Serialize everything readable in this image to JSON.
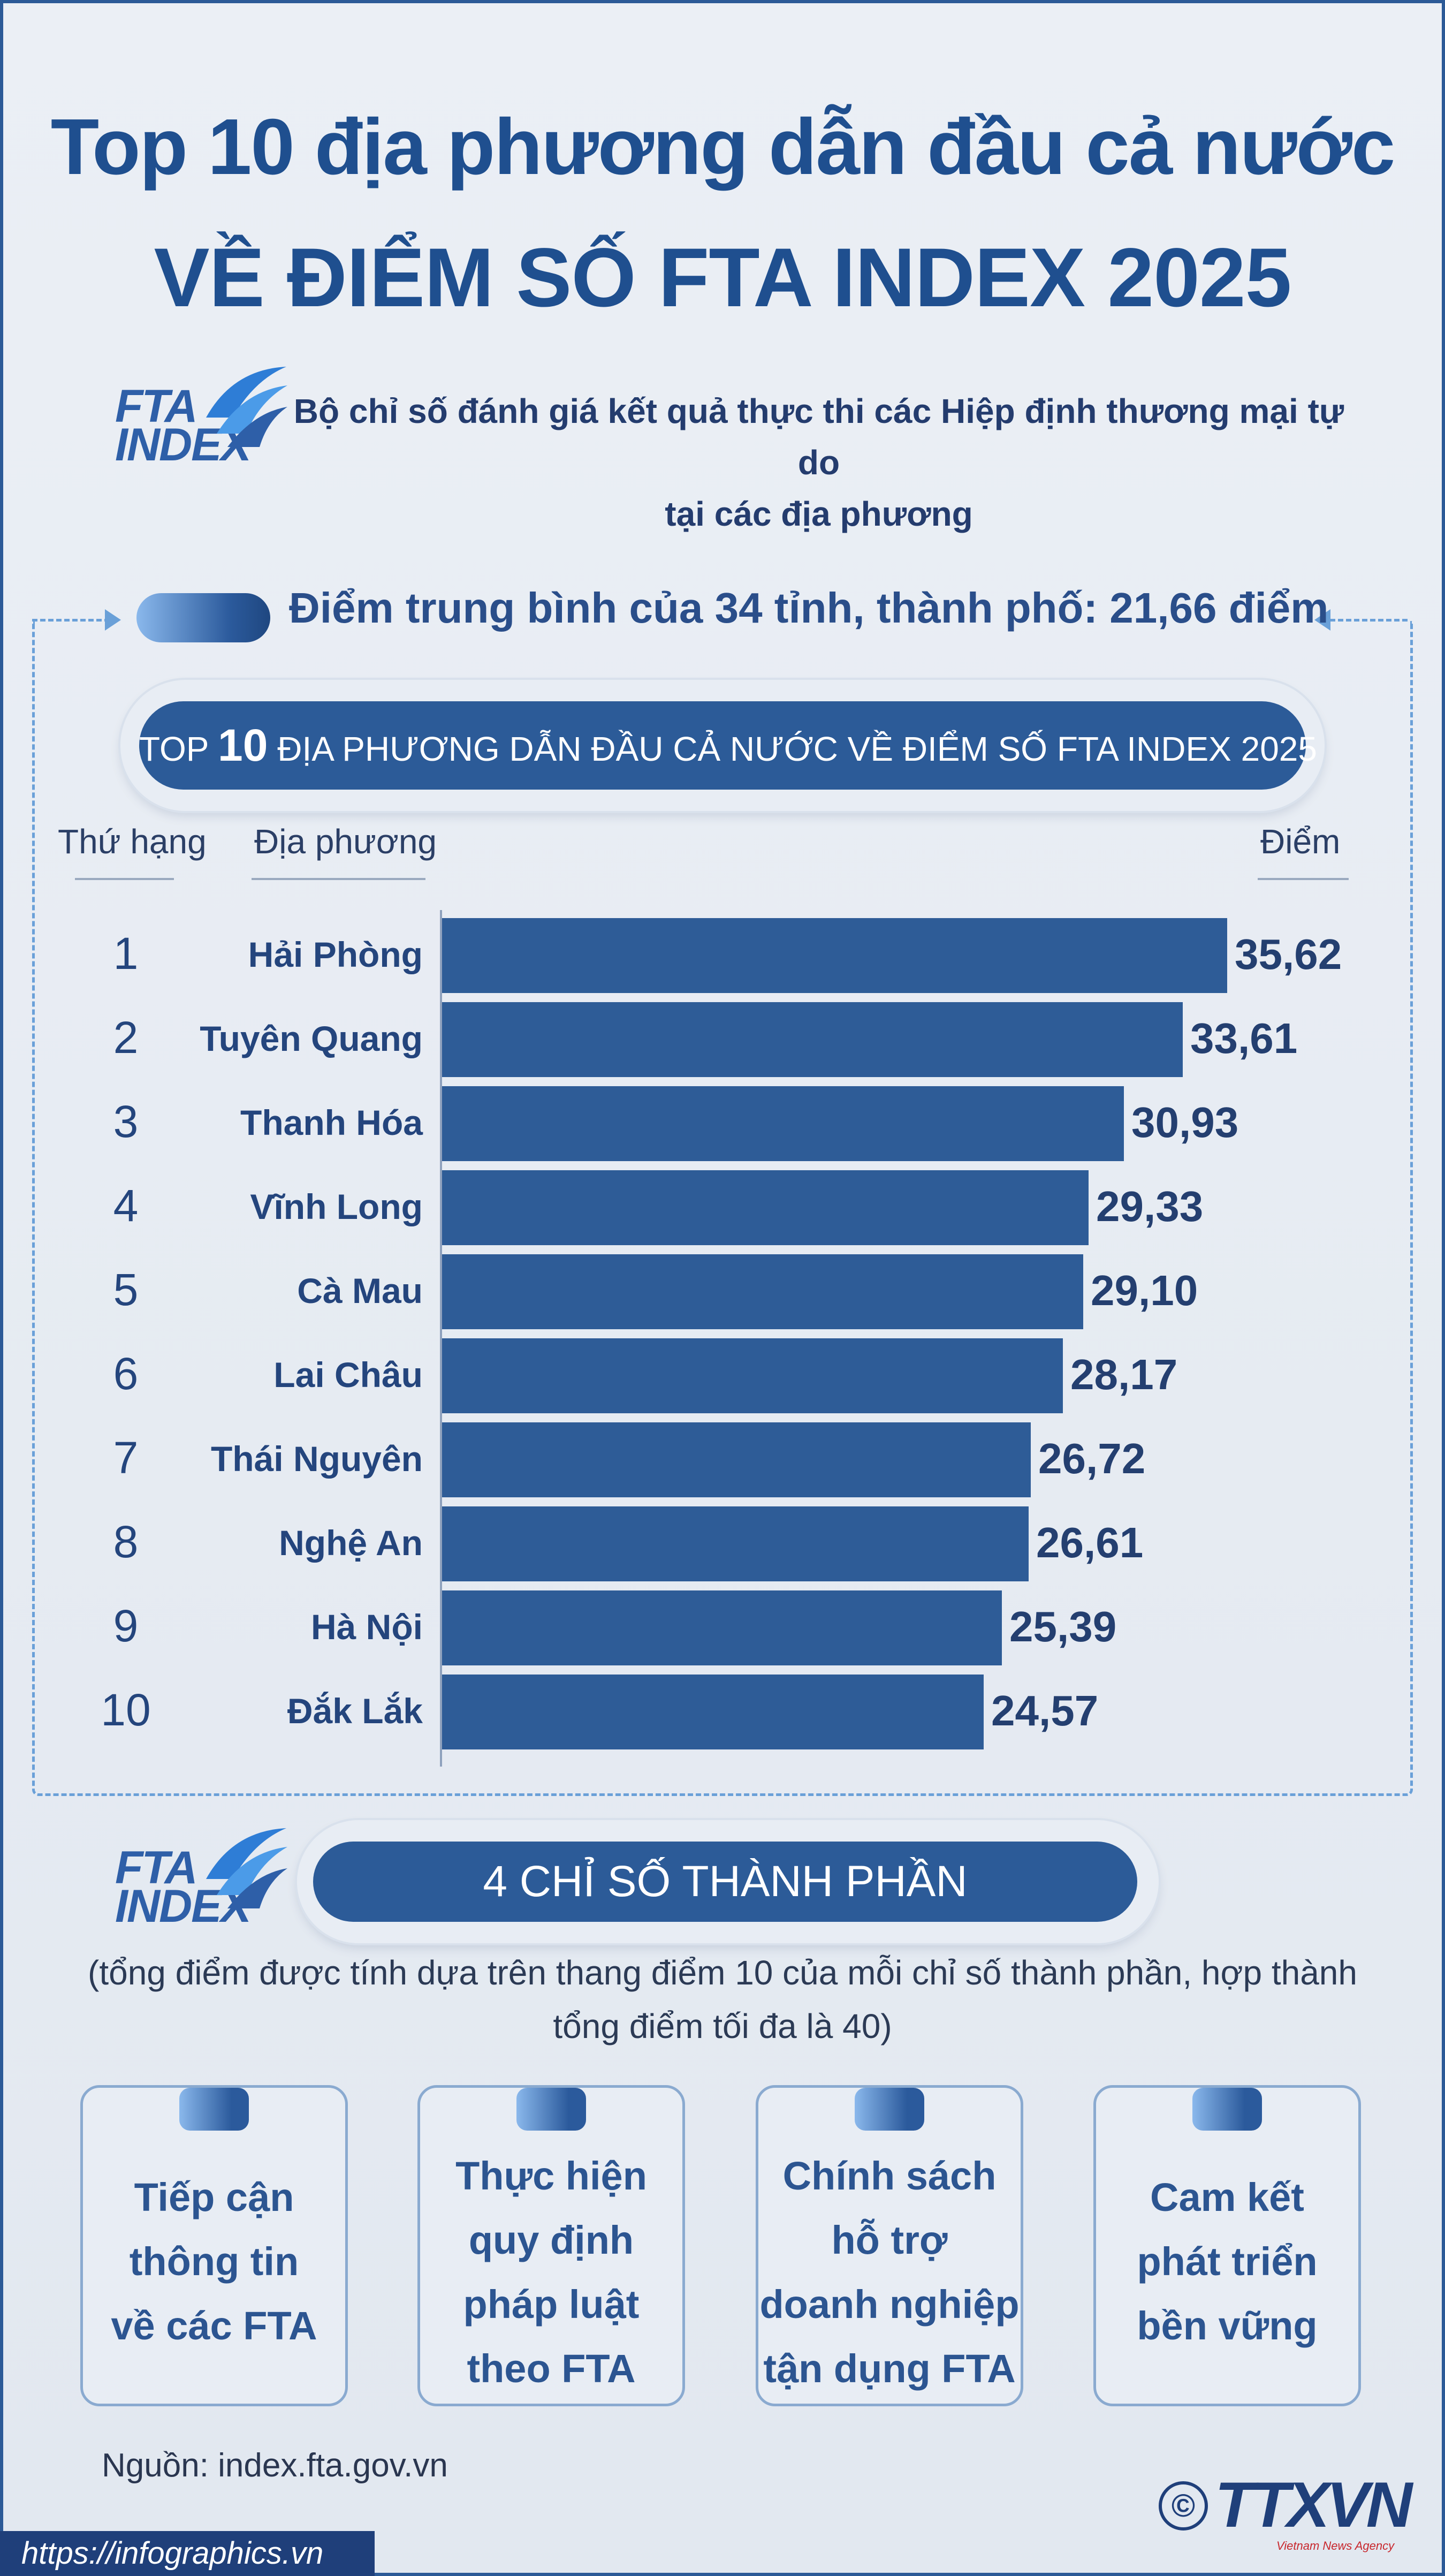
{
  "title_line1": "Top 10 địa phương dẫn đầu cả nước",
  "title_line2": "VỀ ĐIỂM SỐ FTA INDEX 2025",
  "logo": {
    "line1": "FTA",
    "line2": "INDEX"
  },
  "subtitle_line1": "Bộ chỉ số đánh giá kết quả thực thi các Hiệp định thương mại tự do",
  "subtitle_line2": "tại các địa phương",
  "average_text": "Điểm trung bình của 34 tỉnh, thành phố: 21,66 điểm",
  "banner": {
    "pre": "TOP ",
    "big": "10",
    "post": " ĐỊA PHƯƠNG DẪN ĐẦU CẢ NƯỚC VỀ ĐIỂM SỐ FTA INDEX 2025"
  },
  "columns": {
    "rank": "Thứ hạng",
    "place": "Địa phương",
    "score": "Điểm"
  },
  "chart_data": {
    "type": "bar",
    "orientation": "horizontal",
    "categories": [
      "Hải Phòng",
      "Tuyên Quang",
      "Thanh Hóa",
      "Vĩnh Long",
      "Cà Mau",
      "Lai Châu",
      "Thái Nguyên",
      "Nghệ An",
      "Hà Nội",
      "Đắk Lắk"
    ],
    "ranks": [
      "1",
      "2",
      "3",
      "4",
      "5",
      "6",
      "7",
      "8",
      "9",
      "10"
    ],
    "values": [
      35.62,
      33.61,
      30.93,
      29.33,
      29.1,
      28.17,
      26.72,
      26.61,
      25.39,
      24.57
    ],
    "value_labels": [
      "35,62",
      "33,61",
      "30,93",
      "29,33",
      "29,10",
      "28,17",
      "26,72",
      "26,61",
      "25,39",
      "24,57"
    ],
    "bar_color": "#2e5c97"
  },
  "components_heading": "4 CHỈ SỐ THÀNH PHẦN",
  "components_note_line1": "(tổng điểm được tính dựa trên thang điểm 10 của mỗi chỉ số thành phần, hợp thành",
  "components_note_line2": "tổng điểm tối đa là 40)",
  "components": [
    {
      "lines": [
        "Tiếp cận",
        "thông tin",
        "về các FTA"
      ]
    },
    {
      "lines": [
        "Thực hiện",
        "quy định",
        "pháp luật",
        "theo FTA"
      ]
    },
    {
      "lines": [
        "Chính sách",
        "hỗ trợ",
        "doanh nghiệp",
        "tận dụng FTA"
      ]
    },
    {
      "lines": [
        "Cam kết",
        "phát triển",
        "bền vững"
      ]
    }
  ],
  "source": "Nguồn: index.fta.gov.vn",
  "copyright_symbol": "©",
  "agency_logo": "TTXVN",
  "agency_sub": "Vietnam News Agency",
  "url": "https://infographics.vn"
}
